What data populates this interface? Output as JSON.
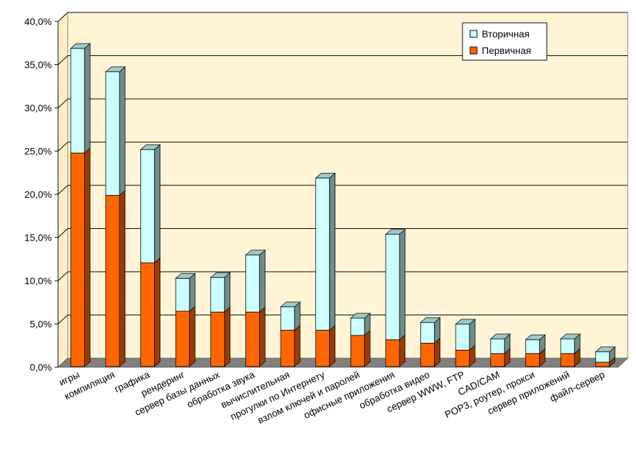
{
  "chart_data": {
    "type": "bar",
    "stacked": true,
    "style": "3d-column",
    "categories": [
      "игры",
      "компиляция",
      "графика",
      "рендеринг",
      "сервер базы данных",
      "обработка звука",
      "вычислительная",
      "прогулки по Интернету",
      "взлом ключей и паролей",
      "офисные приложения",
      "обработка видео",
      "сервер WWW, FTP",
      "CAD/CAM",
      "POP3, роутер, прокси",
      "сервер приложений",
      "файл-сервер"
    ],
    "series": [
      {
        "name": "Первичная",
        "color": "#ff6600",
        "values": [
          24.7,
          19.8,
          12.0,
          6.4,
          6.3,
          6.3,
          4.2,
          4.2,
          3.6,
          3.1,
          2.7,
          1.9,
          1.5,
          1.5,
          1.5,
          0.5
        ]
      },
      {
        "name": "Вторичная",
        "color": "#ccffff",
        "values": [
          12.1,
          14.3,
          13.1,
          3.8,
          4.0,
          6.6,
          2.7,
          17.6,
          2.0,
          12.2,
          2.4,
          3.0,
          1.7,
          1.6,
          1.7,
          1.2
        ]
      }
    ],
    "ylim": [
      0,
      40
    ],
    "yticks": [
      "0,0%",
      "5,0%",
      "10,0%",
      "15,0%",
      "20,0%",
      "25,0%",
      "30,0%",
      "35,0%",
      "40,0%"
    ],
    "grid": true,
    "legend_position": "top-right",
    "plot_background": "#fff5d6",
    "floor_color": "#808080"
  }
}
